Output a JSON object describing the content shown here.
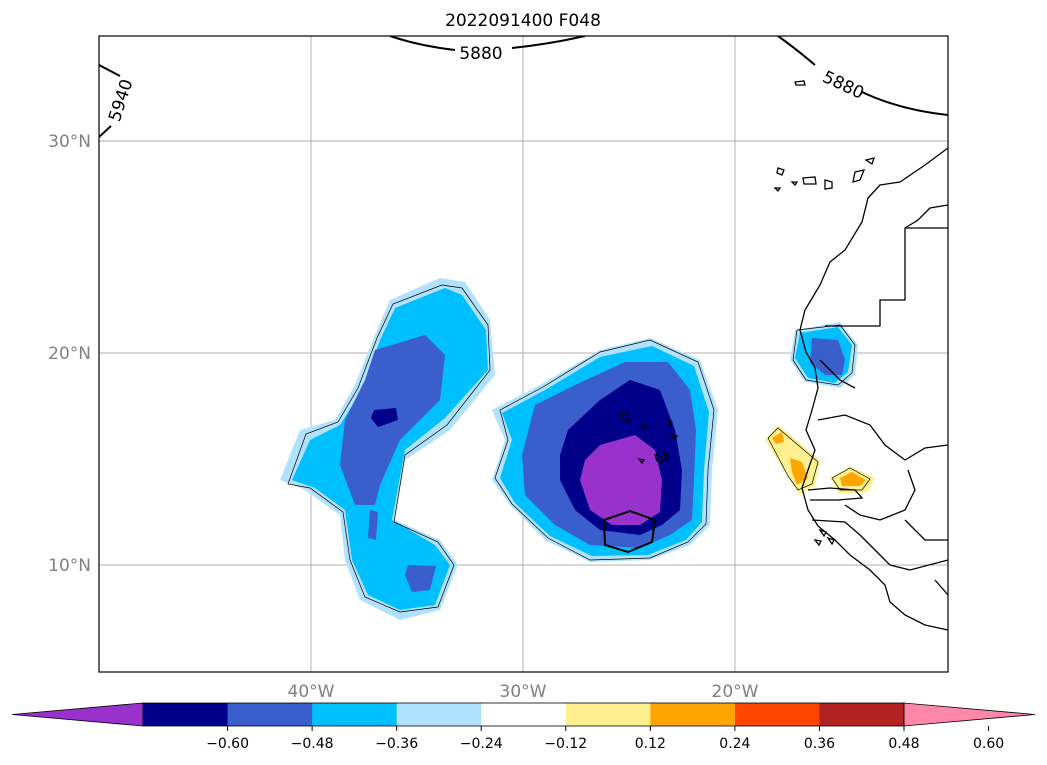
{
  "title": "2022091400 F048",
  "map": {
    "lat_labels": [
      "30°N",
      "20°N",
      "10°N"
    ],
    "lon_labels": [
      "40°W",
      "30°W",
      "20°W"
    ],
    "contour_labels": [
      "5880",
      "5880",
      "5940"
    ]
  },
  "colorbar": {
    "tick_labels": [
      "−0.60",
      "−0.48",
      "−0.36",
      "−0.24",
      "−0.12",
      "0.12",
      "0.24",
      "0.36",
      "0.48",
      "0.60"
    ],
    "colors": [
      "#9932cc",
      "#00008b",
      "#3a5fcd",
      "#00bfff",
      "#b0e2ff",
      "#ffffff",
      "#fff08f",
      "#ffa500",
      "#ff4500",
      "#b22222",
      "#ff88aa"
    ]
  }
}
